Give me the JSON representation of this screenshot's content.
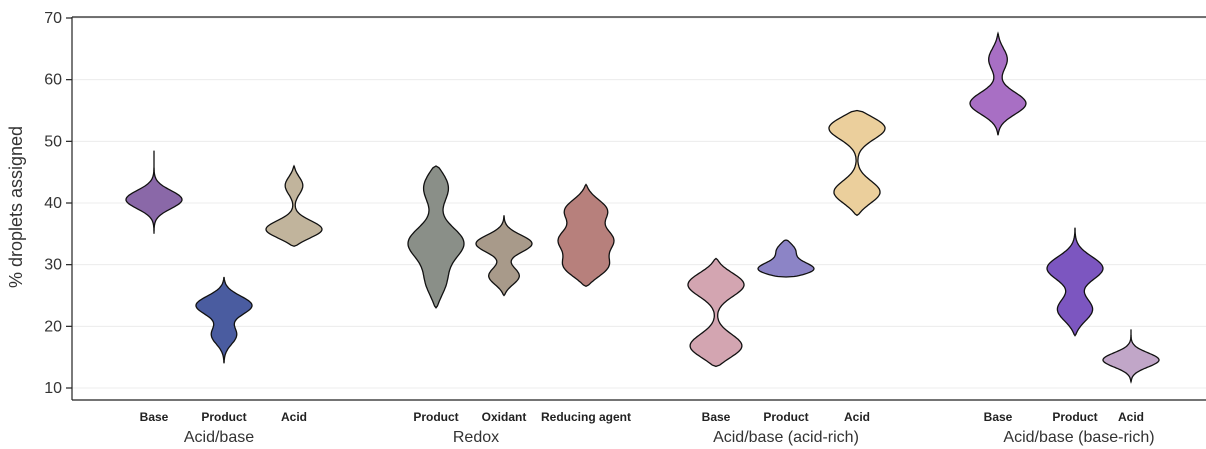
{
  "chart_data": {
    "type": "violin",
    "ylabel": "% droplets assigned",
    "ylim": [
      8,
      70
    ],
    "yticks": [
      10,
      20,
      30,
      40,
      50,
      60,
      70
    ],
    "grid": "horizontal",
    "groups": [
      {
        "label": "Acid/base",
        "violins": [
          {
            "category": "Base",
            "color": "#8a68a8",
            "min": 35,
            "max": 48.5,
            "modes": [
              [
                40.5,
                1.0
              ]
            ]
          },
          {
            "category": "Product",
            "color": "#4a5ca0",
            "min": 14,
            "max": 28,
            "modes": [
              [
                23.5,
                1.0
              ],
              [
                18.5,
                0.45
              ]
            ]
          },
          {
            "category": "Acid",
            "color": "#c1b49c",
            "min": 33,
            "max": 46,
            "modes": [
              [
                35.5,
                1.0
              ],
              [
                43,
                0.3
              ]
            ]
          }
        ]
      },
      {
        "label": "Redox",
        "violins": [
          {
            "category": "Product",
            "color": "#8a8f88",
            "min": 23,
            "max": 46,
            "modes": [
              [
                33.5,
                1.0
              ],
              [
                43,
                0.6
              ],
              [
                27,
                0.45
              ]
            ]
          },
          {
            "category": "Oxidant",
            "color": "#a89a8a",
            "min": 25,
            "max": 38,
            "modes": [
              [
                33.5,
                1.0
              ],
              [
                28,
                0.6
              ]
            ]
          },
          {
            "category": "Reducing agent",
            "color": "#b7807c",
            "min": 26.5,
            "max": 43,
            "modes": [
              [
                29.5,
                1.0
              ],
              [
                34,
                1.0
              ],
              [
                39,
                0.9
              ]
            ]
          }
        ]
      },
      {
        "label": "Acid/base (acid-rich)",
        "violins": [
          {
            "category": "Base",
            "color": "#d3a5b1",
            "min": 13.5,
            "max": 31,
            "modes": [
              [
                27,
                0.9
              ],
              [
                16.5,
                0.9
              ]
            ]
          },
          {
            "category": "Product",
            "color": "#8c84c6",
            "min": 28,
            "max": 34,
            "modes": [
              [
                29,
                1.0
              ],
              [
                32.5,
                0.3
              ]
            ]
          },
          {
            "category": "Acid",
            "color": "#ebcf9c",
            "min": 38,
            "max": 55,
            "modes": [
              [
                52.5,
                1.0
              ],
              [
                41.5,
                0.75
              ]
            ]
          }
        ]
      },
      {
        "label": "Acid/base (base-rich)",
        "violins": [
          {
            "category": "Base",
            "color": "#a86fc4",
            "min": 51,
            "max": 67.5,
            "modes": [
              [
                56,
                1.0
              ],
              [
                63.5,
                0.35
              ]
            ]
          },
          {
            "category": "Product",
            "color": "#7c56c0",
            "min": 18.5,
            "max": 36,
            "modes": [
              [
                29.5,
                1.0
              ],
              [
                22.5,
                0.7
              ]
            ]
          },
          {
            "category": "Acid",
            "color": "#c1a6c8",
            "min": 11,
            "max": 19.5,
            "modes": [
              [
                14.5,
                1.0
              ]
            ]
          }
        ]
      }
    ]
  }
}
